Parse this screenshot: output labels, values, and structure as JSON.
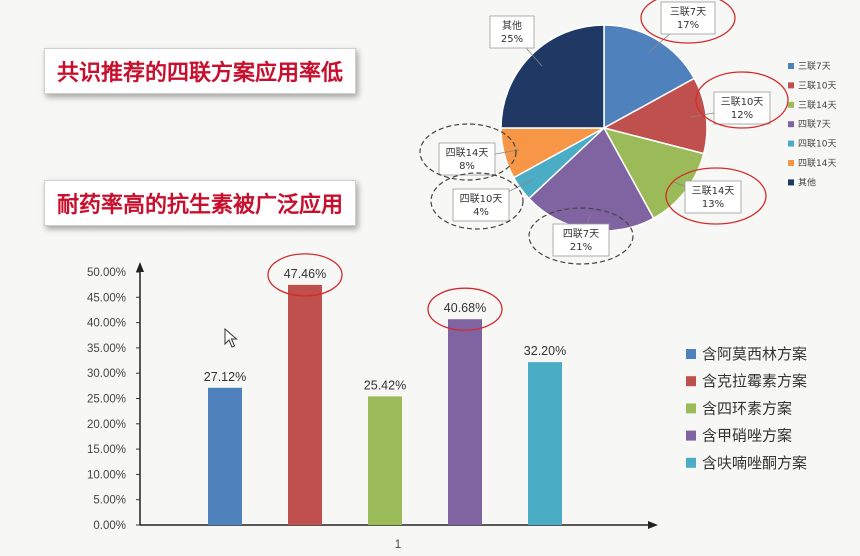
{
  "headings": {
    "top": "共识推荐的四联方案应用率低",
    "bottom": "耐药率高的抗生素被广泛应用"
  },
  "chart_data": [
    {
      "type": "pie",
      "title": "",
      "slices": [
        {
          "label": "三联7天",
          "value": 17,
          "display": "17%",
          "color": "#4f81bd",
          "highlight": "solid"
        },
        {
          "label": "三联10天",
          "value": 12,
          "display": "12%",
          "color": "#c0504d",
          "highlight": "solid"
        },
        {
          "label": "三联14天",
          "value": 13,
          "display": "13%",
          "color": "#9bbb59",
          "highlight": "solid"
        },
        {
          "label": "四联7天",
          "value": 21,
          "display": "21%",
          "color": "#8064a2",
          "highlight": "dashed"
        },
        {
          "label": "四联10天",
          "value": 4,
          "display": "4%",
          "color": "#4bacc6",
          "highlight": "dashed"
        },
        {
          "label": "四联14天",
          "value": 8,
          "display": "8%",
          "color": "#f79646",
          "highlight": "dashed"
        },
        {
          "label": "其他",
          "value": 25,
          "display": "25%",
          "color": "#1f3864",
          "highlight": "none"
        }
      ],
      "legend_position": "right"
    },
    {
      "type": "bar",
      "title": "",
      "categories": [
        "1"
      ],
      "series": [
        {
          "name": "含阿莫西林方案",
          "values": [
            27.12
          ],
          "label": "27.12%",
          "color": "#4f81bd",
          "highlight": false
        },
        {
          "name": "含克拉霉素方案",
          "values": [
            47.46
          ],
          "label": "47.46%",
          "color": "#c0504d",
          "highlight": true
        },
        {
          "name": "含四环素方案",
          "values": [
            25.42
          ],
          "label": "25.42%",
          "color": "#9bbb59",
          "highlight": false
        },
        {
          "name": "含甲硝唑方案",
          "values": [
            40.68
          ],
          "label": "40.68%",
          "color": "#8064a2",
          "highlight": true
        },
        {
          "name": "含呋喃唑酮方案",
          "values": [
            32.2
          ],
          "label": "32.20%",
          "color": "#4bacc6",
          "highlight": false
        }
      ],
      "ylim": [
        0,
        50
      ],
      "yticks": [
        "0.00%",
        "5.00%",
        "10.00%",
        "15.00%",
        "20.00%",
        "25.00%",
        "30.00%",
        "35.00%",
        "40.00%",
        "45.00%",
        "50.00%"
      ],
      "grid": false,
      "legend_position": "right"
    }
  ]
}
